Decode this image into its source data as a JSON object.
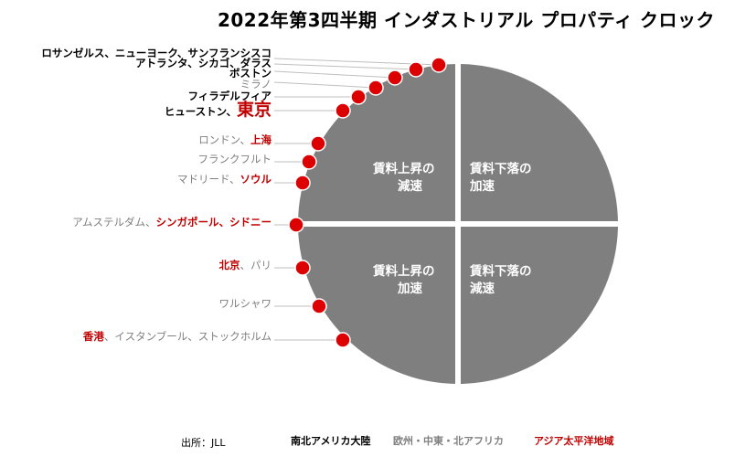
{
  "title": "2022年第3四半期 インダストリアル プロパティ クロック",
  "quadrants": {
    "top_left": [
      "賃料上昇の",
      "減速"
    ],
    "top_right": [
      "賃料下落の",
      "加速"
    ],
    "bottom_left": [
      "賃料上昇の",
      "加速"
    ],
    "bottom_right": [
      "賃料下落の",
      "減速"
    ]
  },
  "markets": [
    {
      "segments": [
        {
          "text": "ロサンゼルス、ニューヨーク、サンフランシスコ",
          "region": "americas"
        }
      ]
    },
    {
      "segments": [
        {
          "text": "アトランタ、シカゴ、ダラス",
          "region": "americas"
        }
      ]
    },
    {
      "segments": [
        {
          "text": "ボストン",
          "region": "americas"
        }
      ]
    },
    {
      "segments": [
        {
          "text": "ミラノ",
          "region": "emea"
        }
      ]
    },
    {
      "segments": [
        {
          "text": "フィラデルフィア",
          "region": "americas"
        }
      ]
    },
    {
      "segments": [
        {
          "text": "ヒューストン、",
          "region": "americas"
        },
        {
          "text": "東京",
          "region": "apac",
          "emphasis": true
        }
      ]
    },
    {
      "segments": [
        {
          "text": "ロンドン、",
          "region": "emea"
        },
        {
          "text": "上海",
          "region": "apac"
        }
      ]
    },
    {
      "segments": [
        {
          "text": "フランクフルト",
          "region": "emea"
        }
      ]
    },
    {
      "segments": [
        {
          "text": "マドリード、",
          "region": "emea"
        },
        {
          "text": "ソウル",
          "region": "apac"
        }
      ]
    },
    {
      "segments": [
        {
          "text": "アムステルダム、",
          "region": "emea"
        },
        {
          "text": "シンガポール、シドニー",
          "region": "apac"
        }
      ]
    },
    {
      "segments": [
        {
          "text": "北京",
          "region": "apac"
        },
        {
          "text": "、パリ",
          "region": "emea"
        }
      ]
    },
    {
      "segments": [
        {
          "text": "ワルシャワ",
          "region": "emea"
        }
      ]
    },
    {
      "segments": [
        {
          "text": "香港",
          "region": "apac"
        },
        {
          "text": "、イスタンブール、ストックホルム",
          "region": "emea"
        }
      ]
    }
  ],
  "source": "出所：JLL",
  "legend": [
    {
      "label": "南北アメリカ大陸",
      "region": "americas"
    },
    {
      "label": "欧州・中東・北アフリカ",
      "region": "emea"
    },
    {
      "label": "アジア太平洋地域",
      "region": "apac"
    }
  ],
  "colors": {
    "clock": "#7f7f7f",
    "marker": "#dd0000",
    "americas": "#000000",
    "emea": "#7f7f7f",
    "apac": "#c00000"
  }
}
